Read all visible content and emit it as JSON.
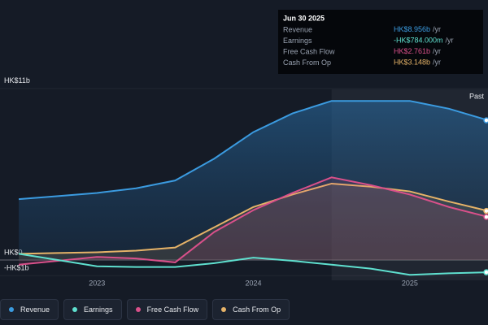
{
  "chart_data": {
    "type": "area",
    "x": [
      2022.5,
      2022.75,
      2023,
      2023.25,
      2023.5,
      2023.75,
      2024,
      2024.25,
      2024.5,
      2024.75,
      2025,
      2025.25,
      2025.5
    ],
    "xlim": [
      2022.38,
      2025.5
    ],
    "xticks": [
      2023,
      2024,
      2025
    ],
    "ylim": [
      -1.3,
      11.46
    ],
    "yticks": [
      {
        "value": 11,
        "label": "HK$11b"
      },
      {
        "value": 0,
        "label": "HK$0"
      },
      {
        "value": -1,
        "label": "-HK$1b"
      }
    ],
    "past_label": "Past",
    "past_from": 2024.5,
    "series": [
      {
        "name": "Revenue",
        "color": "#3b9be0",
        "values": [
          3.9,
          4.1,
          4.3,
          4.6,
          5.1,
          6.5,
          8.2,
          9.4,
          10.2,
          10.2,
          10.2,
          9.7,
          8.956
        ]
      },
      {
        "name": "Earnings",
        "color": "#5fe0cf",
        "values": [
          0.4,
          0,
          -0.4,
          -0.45,
          -0.45,
          -0.2,
          0.15,
          -0.05,
          -0.3,
          -0.55,
          -0.95,
          -0.85,
          -0.784
        ]
      },
      {
        "name": "Free Cash Flow",
        "color": "#d9508a",
        "values": [
          -0.3,
          -0.05,
          0.2,
          0.1,
          -0.15,
          1.8,
          3.2,
          4.3,
          5.3,
          4.8,
          4.2,
          3.4,
          2.761
        ]
      },
      {
        "name": "Cash From Op",
        "color": "#e6b368",
        "values": [
          0.4,
          0.45,
          0.5,
          0.6,
          0.8,
          2.1,
          3.4,
          4.2,
          4.9,
          4.7,
          4.4,
          3.75,
          3.148
        ]
      }
    ],
    "tooltip": {
      "title": "Jun 30 2025",
      "unit": "/yr",
      "values": [
        "HK$8.956b",
        "-HK$784.000m",
        "HK$2.761b",
        "HK$3.148b"
      ]
    }
  }
}
